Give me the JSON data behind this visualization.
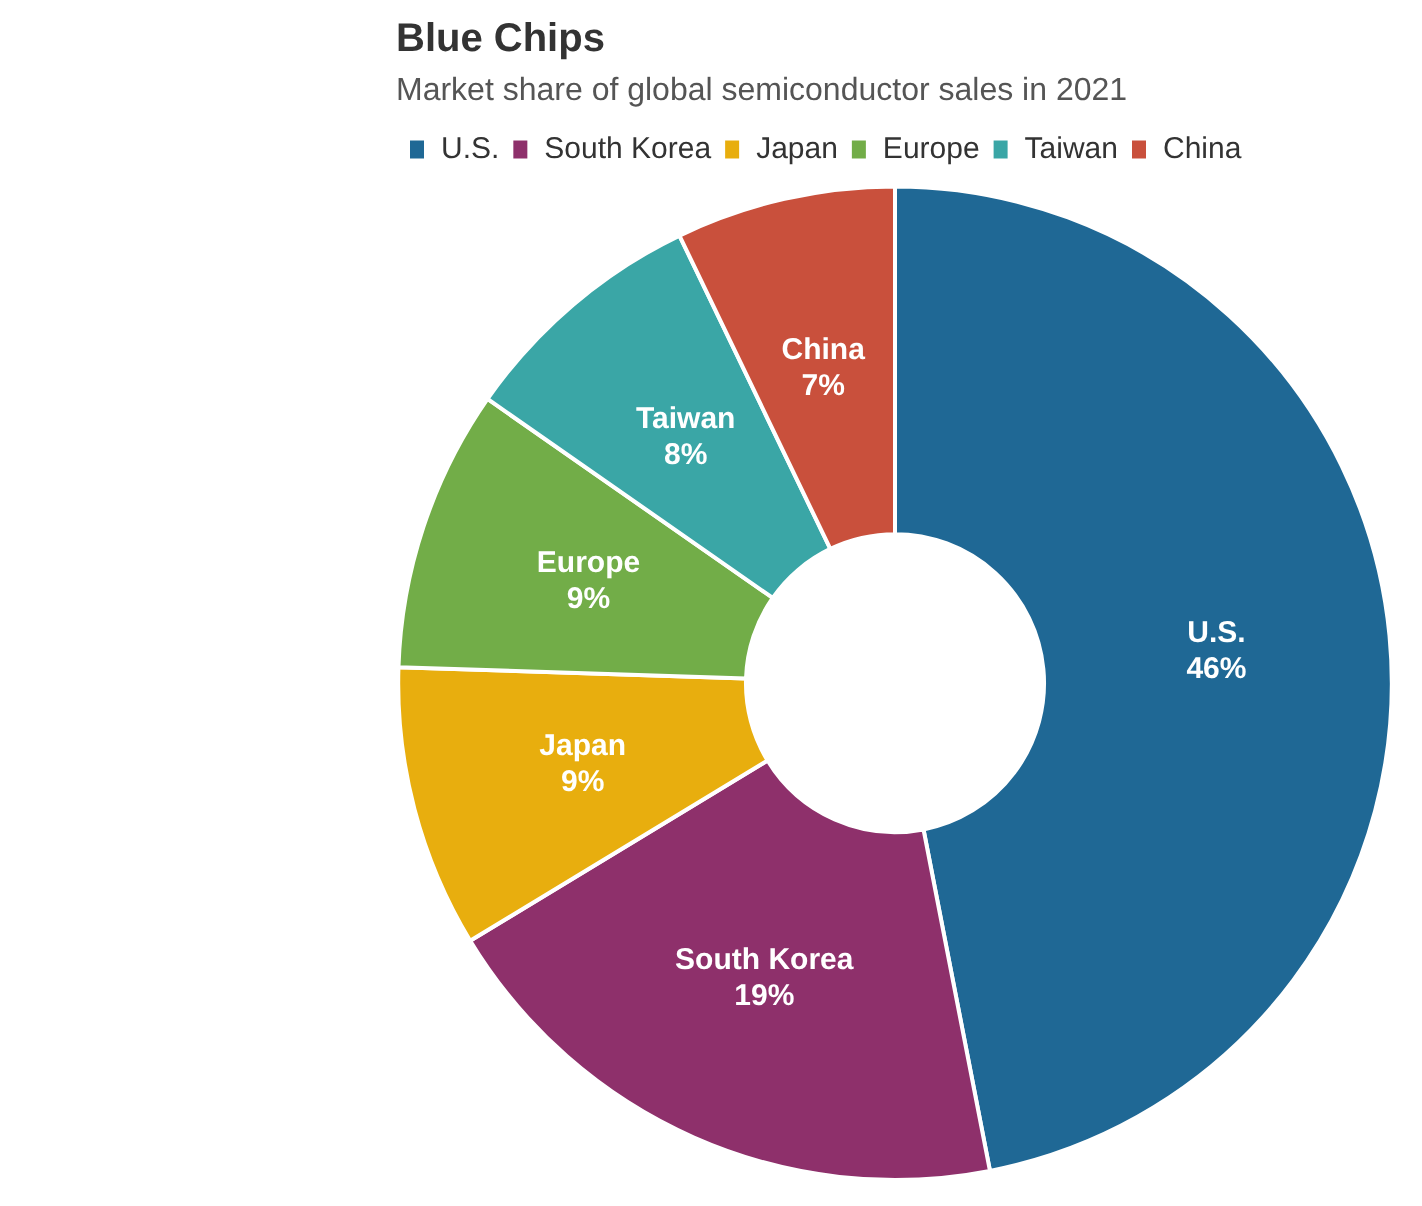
{
  "chart_data": {
    "type": "donut",
    "title": "Blue Chips",
    "subtitle": "Market share of global semiconductor sales in 2021",
    "categories": [
      "U.S.",
      "South Korea",
      "Japan",
      "Europe",
      "Taiwan",
      "China"
    ],
    "values": [
      46,
      19,
      9,
      9,
      8,
      7
    ],
    "value_labels": [
      "46%",
      "19%",
      "9%",
      "9%",
      "8%",
      "7%"
    ],
    "colors": [
      "#1f6895",
      "#8e306b",
      "#e8ae0e",
      "#72ad48",
      "#3aa6a6",
      "#c9503c"
    ],
    "legend": "top left"
  }
}
